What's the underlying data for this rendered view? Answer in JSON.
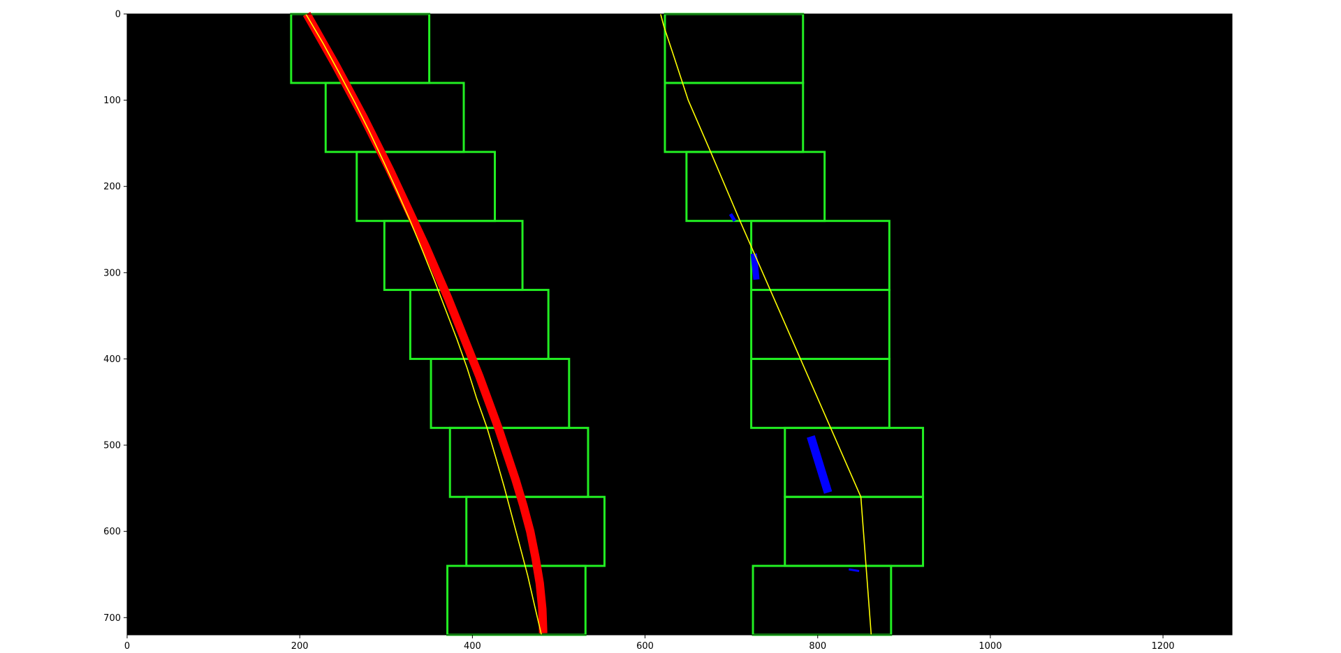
{
  "chart_data": {
    "type": "scatter",
    "title": "",
    "xlabel": "",
    "ylabel": "",
    "xlim": [
      0,
      1280
    ],
    "ylim": [
      720,
      0
    ],
    "y_inverted": true,
    "grid": false,
    "background_color": "#000000",
    "x_ticks": [
      0,
      200,
      400,
      600,
      800,
      1000,
      1200
    ],
    "x_tick_labels": [
      "0",
      "200",
      "400",
      "600",
      "800",
      "1000",
      "1200"
    ],
    "y_ticks": [
      0,
      100,
      200,
      300,
      400,
      500,
      600,
      700
    ],
    "y_tick_labels": [
      "0",
      "100",
      "200",
      "300",
      "400",
      "500",
      "600",
      "700"
    ],
    "window_color": "#22ee22",
    "windows_left": [
      {
        "x0": 190,
        "x1": 350,
        "y0": 0,
        "y1": 80
      },
      {
        "x0": 230,
        "x1": 390,
        "y0": 80,
        "y1": 160
      },
      {
        "x0": 266,
        "x1": 426,
        "y0": 160,
        "y1": 240
      },
      {
        "x0": 298,
        "x1": 458,
        "y0": 240,
        "y1": 320
      },
      {
        "x0": 328,
        "x1": 488,
        "y0": 320,
        "y1": 400
      },
      {
        "x0": 352,
        "x1": 512,
        "y0": 400,
        "y1": 480
      },
      {
        "x0": 374,
        "x1": 534,
        "y0": 480,
        "y1": 560
      },
      {
        "x0": 393,
        "x1": 553,
        "y0": 560,
        "y1": 640
      },
      {
        "x0": 371,
        "x1": 531,
        "y0": 640,
        "y1": 720
      }
    ],
    "windows_right": [
      {
        "x0": 623,
        "x1": 783,
        "y0": 0,
        "y1": 80
      },
      {
        "x0": 623,
        "x1": 783,
        "y0": 80,
        "y1": 160
      },
      {
        "x0": 648,
        "x1": 808,
        "y0": 160,
        "y1": 240
      },
      {
        "x0": 723,
        "x1": 883,
        "y0": 240,
        "y1": 320
      },
      {
        "x0": 723,
        "x1": 883,
        "y0": 320,
        "y1": 400
      },
      {
        "x0": 723,
        "x1": 883,
        "y0": 400,
        "y1": 480
      },
      {
        "x0": 762,
        "x1": 922,
        "y0": 480,
        "y1": 560
      },
      {
        "x0": 762,
        "x1": 922,
        "y0": 560,
        "y1": 640
      },
      {
        "x0": 725,
        "x1": 885,
        "y0": 640,
        "y1": 720
      }
    ],
    "left_pixels": {
      "color": "#ff0000",
      "band_width": 12,
      "points": [
        [
          208,
          0
        ],
        [
          225,
          30
        ],
        [
          242,
          60
        ],
        [
          258,
          90
        ],
        [
          274,
          120
        ],
        [
          289,
          150
        ],
        [
          304,
          180
        ],
        [
          318,
          210
        ],
        [
          332,
          240
        ],
        [
          346,
          270
        ],
        [
          359,
          300
        ],
        [
          372,
          330
        ],
        [
          384,
          360
        ],
        [
          396,
          390
        ],
        [
          408,
          420
        ],
        [
          419,
          450
        ],
        [
          430,
          480
        ],
        [
          440,
          510
        ],
        [
          450,
          540
        ],
        [
          459,
          570
        ],
        [
          467,
          600
        ],
        [
          473,
          630
        ],
        [
          478,
          660
        ],
        [
          481,
          690
        ],
        [
          482,
          718
        ]
      ]
    },
    "right_pixels": {
      "color": "#0000ff",
      "segments": [
        {
          "x0": 699,
          "y0": 232,
          "x1": 704,
          "y1": 240,
          "width": 5
        },
        {
          "x0": 726,
          "y0": 278,
          "x1": 729,
          "y1": 308,
          "width": 9
        },
        {
          "x0": 792,
          "y0": 490,
          "x1": 812,
          "y1": 555,
          "width": 12
        },
        {
          "x0": 836,
          "y0": 644,
          "x1": 848,
          "y1": 646,
          "width": 3
        }
      ]
    },
    "series": [
      {
        "color": "#ffff00",
        "x": [
          207,
          227,
          246,
          264,
          281,
          297,
          313,
          328,
          342,
          356,
          369,
          382,
          394,
          405,
          417,
          427,
          437,
          446,
          455,
          464,
          472,
          480
        ],
        "y": [
          0,
          34,
          69,
          103,
          137,
          171,
          206,
          240,
          274,
          309,
          343,
          377,
          411,
          446,
          480,
          514,
          549,
          583,
          617,
          651,
          686,
          720
        ]
      },
      {
        "color": "#ffff00",
        "x": [
          618,
          622,
          632,
          650,
          676,
          710,
          745,
          780,
          815,
          850,
          862
        ],
        "y": [
          0,
          15,
          45,
          100,
          160,
          240,
          320,
          400,
          480,
          560,
          720
        ]
      }
    ]
  }
}
